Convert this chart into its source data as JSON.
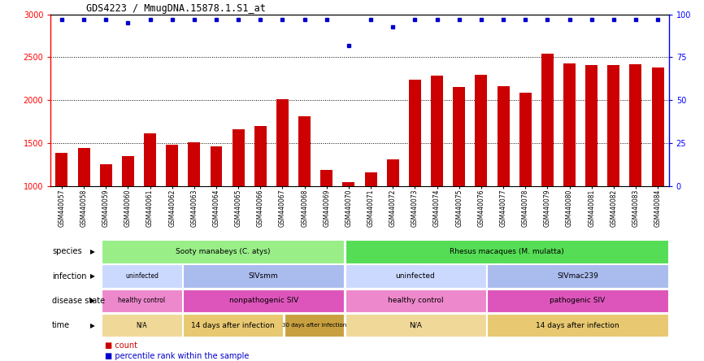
{
  "title": "GDS4223 / MmugDNA.15878.1.S1_at",
  "samples": [
    "GSM440057",
    "GSM440058",
    "GSM440059",
    "GSM440060",
    "GSM440061",
    "GSM440062",
    "GSM440063",
    "GSM440064",
    "GSM440065",
    "GSM440066",
    "GSM440067",
    "GSM440068",
    "GSM440069",
    "GSM440070",
    "GSM440071",
    "GSM440072",
    "GSM440073",
    "GSM440074",
    "GSM440075",
    "GSM440076",
    "GSM440077",
    "GSM440078",
    "GSM440079",
    "GSM440080",
    "GSM440081",
    "GSM440082",
    "GSM440083",
    "GSM440084"
  ],
  "counts": [
    1390,
    1440,
    1250,
    1350,
    1610,
    1480,
    1510,
    1460,
    1660,
    1700,
    2010,
    1810,
    1190,
    1045,
    1160,
    1310,
    2240,
    2290,
    2150,
    2300,
    2160,
    2090,
    2540,
    2430,
    2410,
    2410,
    2420,
    2380
  ],
  "percentile_ranks": [
    97,
    97,
    97,
    95,
    97,
    97,
    97,
    97,
    97,
    97,
    97,
    97,
    97,
    82,
    97,
    93,
    97,
    97,
    97,
    97,
    97,
    97,
    97,
    97,
    97,
    97,
    97,
    97
  ],
  "ylim_left": [
    1000,
    3000
  ],
  "yticks_left": [
    1000,
    1500,
    2000,
    2500,
    3000
  ],
  "ylim_right": [
    0,
    100
  ],
  "yticks_right": [
    0,
    25,
    50,
    75,
    100
  ],
  "bar_color": "#cc0000",
  "dot_color": "#0000cc",
  "metadata_rows": [
    {
      "label": "species",
      "segments": [
        {
          "text": "Sooty manabeys (C. atys)",
          "start": 0,
          "end": 12,
          "color": "#99ee88"
        },
        {
          "text": "Rhesus macaques (M. mulatta)",
          "start": 12,
          "end": 28,
          "color": "#55dd55"
        }
      ]
    },
    {
      "label": "infection",
      "segments": [
        {
          "text": "uninfected",
          "start": 0,
          "end": 4,
          "color": "#ccd9ff"
        },
        {
          "text": "SIVsmm",
          "start": 4,
          "end": 12,
          "color": "#aabbee"
        },
        {
          "text": "uninfected",
          "start": 12,
          "end": 19,
          "color": "#ccd9ff"
        },
        {
          "text": "SIVmac239",
          "start": 19,
          "end": 28,
          "color": "#aabbee"
        }
      ]
    },
    {
      "label": "disease state",
      "segments": [
        {
          "text": "healthy control",
          "start": 0,
          "end": 4,
          "color": "#ee88cc"
        },
        {
          "text": "nonpathogenic SIV",
          "start": 4,
          "end": 12,
          "color": "#dd55bb"
        },
        {
          "text": "healthy control",
          "start": 12,
          "end": 19,
          "color": "#ee88cc"
        },
        {
          "text": "pathogenic SIV",
          "start": 19,
          "end": 28,
          "color": "#dd55bb"
        }
      ]
    },
    {
      "label": "time",
      "segments": [
        {
          "text": "N/A",
          "start": 0,
          "end": 4,
          "color": "#f0d898"
        },
        {
          "text": "14 days after infection",
          "start": 4,
          "end": 9,
          "color": "#e8c870"
        },
        {
          "text": "30 days after infection",
          "start": 9,
          "end": 12,
          "color": "#c8a040"
        },
        {
          "text": "N/A",
          "start": 12,
          "end": 19,
          "color": "#f0d898"
        },
        {
          "text": "14 days after infection",
          "start": 19,
          "end": 28,
          "color": "#e8c870"
        }
      ]
    }
  ]
}
